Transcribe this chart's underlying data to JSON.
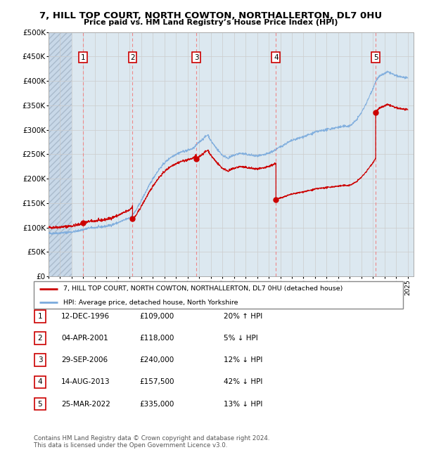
{
  "title": "7, HILL TOP COURT, NORTH COWTON, NORTHALLERTON, DL7 0HU",
  "subtitle": "Price paid vs. HM Land Registry’s House Price Index (HPI)",
  "sale_year_fracs": [
    1996.958,
    2001.25,
    2006.75,
    2013.625,
    2022.23
  ],
  "sale_prices": [
    109000,
    118000,
    240000,
    157500,
    335000
  ],
  "sale_labels": [
    "1",
    "2",
    "3",
    "4",
    "5"
  ],
  "sale_info": [
    {
      "num": "1",
      "date": "12-DEC-1996",
      "price": "£109,000",
      "hpi": "20% ↑ HPI"
    },
    {
      "num": "2",
      "date": "04-APR-2001",
      "price": "£118,000",
      "hpi": "5% ↓ HPI"
    },
    {
      "num": "3",
      "date": "29-SEP-2006",
      "price": "£240,000",
      "hpi": "12% ↓ HPI"
    },
    {
      "num": "4",
      "date": "14-AUG-2013",
      "price": "£157,500",
      "hpi": "42% ↓ HPI"
    },
    {
      "num": "5",
      "date": "25-MAR-2022",
      "price": "£335,000",
      "hpi": "13% ↓ HPI"
    }
  ],
  "legend_line1": "7, HILL TOP COURT, NORTH COWTON, NORTHALLERTON, DL7 0HU (detached house)",
  "legend_line2": "HPI: Average price, detached house, North Yorkshire",
  "footer": "Contains HM Land Registry data © Crown copyright and database right 2024.\nThis data is licensed under the Open Government Licence v3.0.",
  "ylim": [
    0,
    500000
  ],
  "yticks": [
    0,
    50000,
    100000,
    150000,
    200000,
    250000,
    300000,
    350000,
    400000,
    450000,
    500000
  ],
  "hpi_color": "#7aaadd",
  "sale_color": "#cc0000",
  "dashed_line_color": "#ee8888",
  "hatch_color": "#c8d8e8",
  "bg_color": "#dce8f0"
}
